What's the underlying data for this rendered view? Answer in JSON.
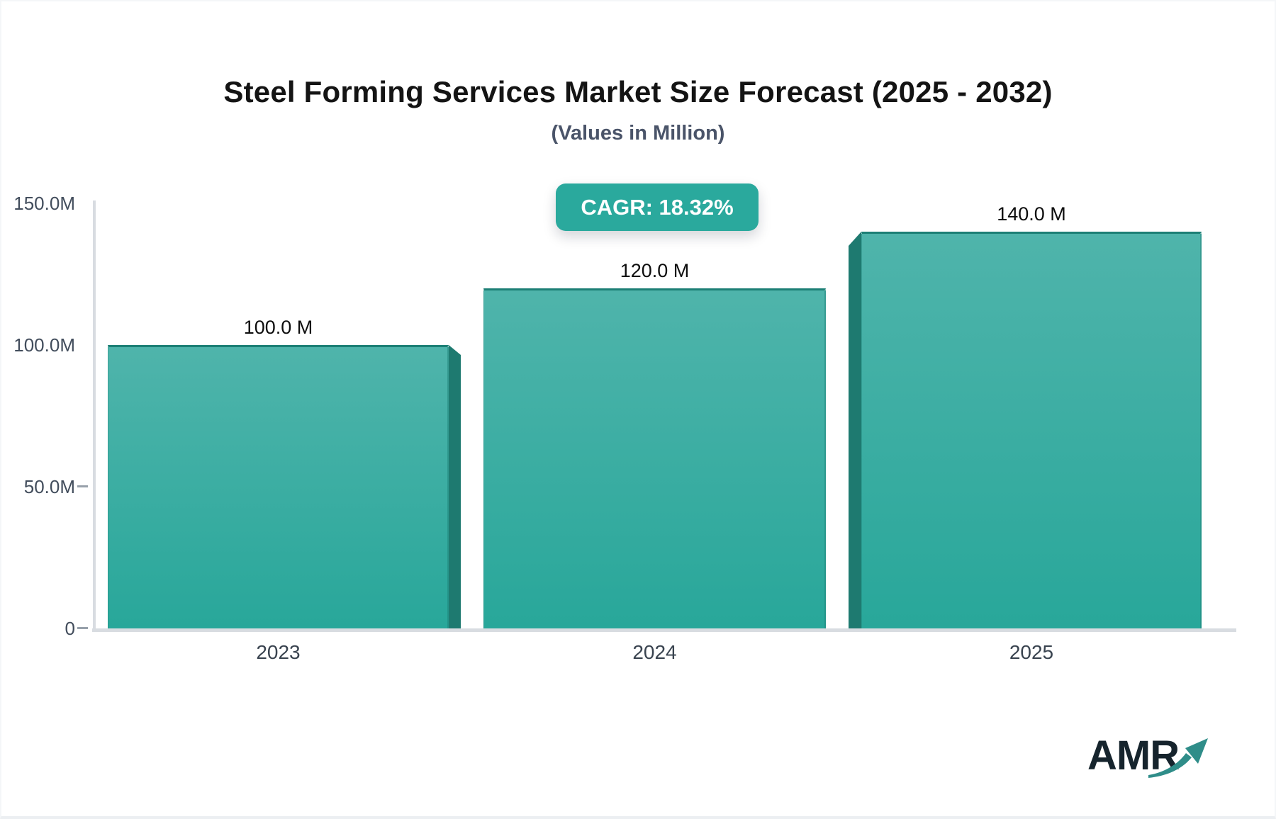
{
  "chart_data": {
    "type": "bar",
    "title": "Steel Forming Services Market Size Forecast (2025 - 2032)",
    "subtitle": "(Values in Million)",
    "cagr_label": "CAGR: 18.32%",
    "cagr_value": "18.32%",
    "unit": "Million",
    "categories": [
      "2023",
      "2024",
      "2025"
    ],
    "values": [
      100.0,
      120.0,
      140.0
    ],
    "bar_labels": [
      "100.0 M",
      "120.0 M",
      "140.0 M"
    ],
    "xlabel": "",
    "ylabel": "",
    "ylim": [
      0,
      150
    ],
    "yticks": [
      {
        "value": 0,
        "label": "0",
        "dash": true
      },
      {
        "value": 50,
        "label": "50.0M",
        "dash": true
      },
      {
        "value": 100,
        "label": "100.0M",
        "dash": false
      },
      {
        "value": 150,
        "label": "150.0M",
        "dash": false
      }
    ],
    "grid": false,
    "legend": "none",
    "bar_style": "3d-gradient-teal"
  },
  "logo": {
    "text": "AMR",
    "arrow_icon": "growth-arrow-icon"
  },
  "colors": {
    "accent_teal": "#2aa99d",
    "bar_gradient_top": "#4fb4ab",
    "bar_gradient_bottom": "#28a79a",
    "bar_outline": "#1c7f75",
    "bar_side_3d": "#1e7a70",
    "axis_line": "#d8dce1",
    "tick_text": "#424d5c",
    "title_text": "#141414",
    "subtitle_text": "#4a5469",
    "logo_text": "#16242d",
    "logo_arrow": "#2f8d89"
  }
}
